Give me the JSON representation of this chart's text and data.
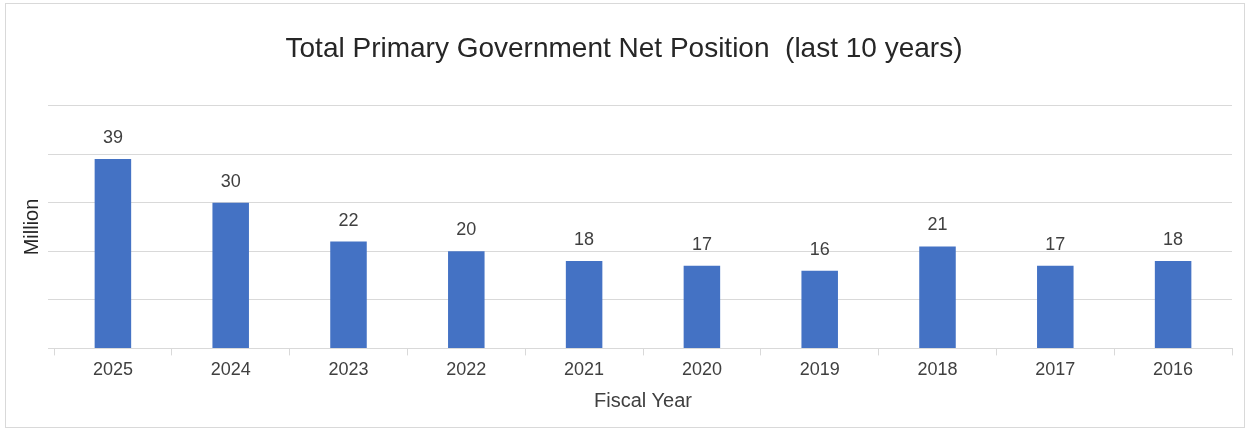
{
  "chart_data": {
    "type": "bar",
    "title": "Total Primary Government Net Position  (last 10 years)",
    "xlabel": "Fiscal Year",
    "ylabel": "Million",
    "categories": [
      "2025",
      "2024",
      "2023",
      "2022",
      "2021",
      "2020",
      "2019",
      "2018",
      "2017",
      "2016"
    ],
    "values": [
      39,
      30,
      22,
      20,
      18,
      17,
      16,
      21,
      17,
      18
    ],
    "color": "#4472c4",
    "ylim": [
      0,
      50
    ],
    "yticks": [
      {
        "value": 0,
        "label": null
      },
      {
        "value": 10,
        "label": null
      },
      {
        "value": 20,
        "label": null
      },
      {
        "value": 30,
        "label": null
      },
      {
        "value": 40,
        "label": null
      },
      {
        "value": 50,
        "label": null
      }
    ],
    "grid": "y",
    "tick_labels": "x",
    "data_labels": true,
    "legend": false
  }
}
